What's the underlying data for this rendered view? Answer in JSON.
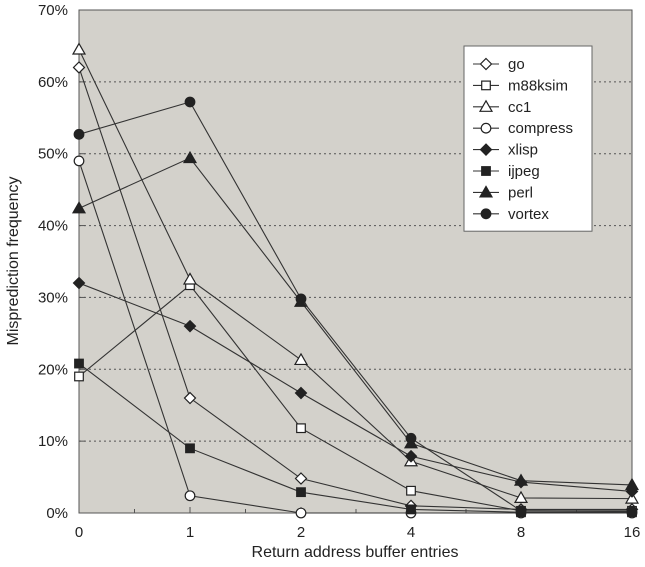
{
  "chart_data": {
    "type": "line",
    "title": "",
    "xlabel": "Return address buffer entries",
    "ylabel": "Misprediction frequency",
    "categories": [
      "0",
      "1",
      "2",
      "4",
      "8",
      "16"
    ],
    "ylim": [
      0,
      70
    ],
    "yticks": [
      "0%",
      "10%",
      "20%",
      "30%",
      "40%",
      "50%",
      "60%",
      "70%"
    ],
    "grid": "horizontal dotted",
    "legend_position": "top-right",
    "background_color": "#d3d1cb",
    "line_color": "#333333",
    "series": [
      {
        "name": "go",
        "marker": "diamond-open",
        "values": [
          62,
          16,
          4.8,
          1,
          0.5,
          0.5
        ]
      },
      {
        "name": "m88ksim",
        "marker": "square-open",
        "values": [
          19,
          31.7,
          11.8,
          3.1,
          0.3,
          0.3
        ]
      },
      {
        "name": "cc1",
        "marker": "triangle-open",
        "values": [
          64.5,
          32.5,
          21.3,
          7.2,
          2.1,
          2.0
        ]
      },
      {
        "name": "compress",
        "marker": "circle-open",
        "values": [
          49,
          2.4,
          0,
          0,
          0,
          0
        ]
      },
      {
        "name": "xlisp",
        "marker": "diamond-filled",
        "values": [
          32,
          26,
          16.7,
          7.9,
          4.3,
          3.0
        ]
      },
      {
        "name": "ijpeg",
        "marker": "square-filled",
        "values": [
          20.8,
          9,
          2.9,
          0.5,
          0.1,
          0.1
        ]
      },
      {
        "name": "perl",
        "marker": "triangle-filled",
        "values": [
          42.4,
          49.4,
          29.4,
          9.7,
          4.5,
          3.9
        ]
      },
      {
        "name": "vortex",
        "marker": "circle-filled",
        "values": [
          52.7,
          57.2,
          29.8,
          10.4,
          0.3,
          0.2
        ]
      }
    ]
  }
}
